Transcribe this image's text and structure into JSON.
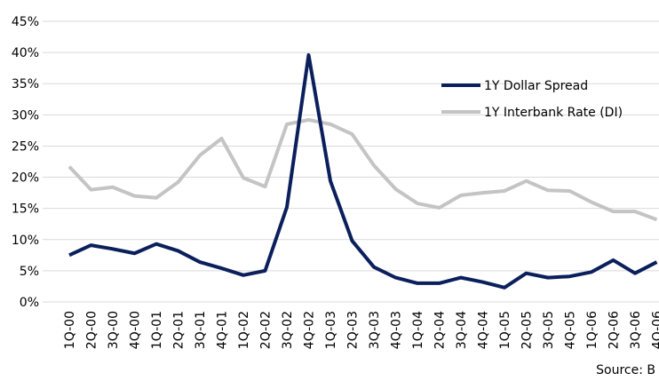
{
  "chart_data": {
    "type": "line",
    "categories": [
      "1Q-00",
      "2Q-00",
      "3Q-00",
      "4Q-00",
      "1Q-01",
      "2Q-01",
      "3Q-01",
      "4Q-01",
      "1Q-02",
      "2Q-02",
      "3Q-02",
      "4Q-02",
      "1Q-03",
      "2Q-03",
      "3Q-03",
      "4Q-03",
      "1Q-04",
      "2Q-04",
      "3Q-04",
      "4Q-04",
      "1Q-05",
      "2Q-05",
      "3Q-05",
      "4Q-05",
      "1Q-06",
      "2Q-06",
      "3Q-06",
      "4Q-06"
    ],
    "series": [
      {
        "name": "1Y Dollar Spread",
        "color": "#0b1f5c",
        "values": [
          7.5,
          9.1,
          8.5,
          7.8,
          9.3,
          8.2,
          6.4,
          5.4,
          4.3,
          5.0,
          15.2,
          39.6,
          19.4,
          9.8,
          5.6,
          3.9,
          3.0,
          3.0,
          3.9,
          3.2,
          2.3,
          4.6,
          3.9,
          4.1,
          4.8,
          6.7,
          4.6,
          6.4
        ]
      },
      {
        "name": "1Y Interbank Rate (DI)",
        "color": "#c4c4c4",
        "values": [
          21.7,
          18.0,
          18.4,
          17.0,
          16.7,
          19.2,
          23.5,
          26.2,
          19.9,
          18.5,
          28.5,
          29.2,
          28.5,
          26.9,
          21.9,
          18.1,
          15.8,
          15.1,
          17.1,
          17.5,
          17.8,
          19.4,
          17.9,
          17.8,
          16.0,
          14.5,
          14.5,
          13.2
        ]
      }
    ],
    "ylim": [
      0,
      45
    ],
    "yticks": [
      {
        "value": 0,
        "label": "0%"
      },
      {
        "value": 5,
        "label": "5%"
      },
      {
        "value": 10,
        "label": "10%"
      },
      {
        "value": 15,
        "label": "15%"
      },
      {
        "value": 20,
        "label": "20%"
      },
      {
        "value": 25,
        "label": "25%"
      },
      {
        "value": 30,
        "label": "30%"
      },
      {
        "value": 35,
        "label": "35%"
      },
      {
        "value": 40,
        "label": "40%"
      },
      {
        "value": 45,
        "label": "45%"
      }
    ],
    "grid": true,
    "legend": "upper right",
    "source": "Source: B"
  }
}
